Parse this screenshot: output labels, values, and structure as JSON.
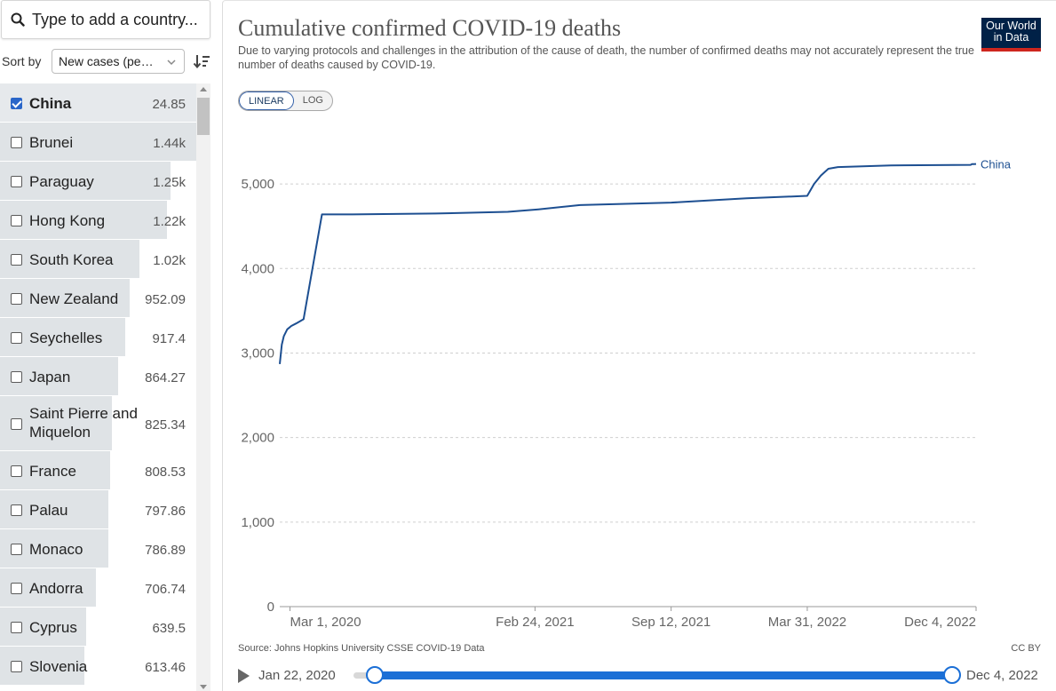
{
  "search": {
    "placeholder": "Type to add a country..."
  },
  "sort": {
    "label": "Sort by",
    "selected": "New cases (pe…"
  },
  "countries": [
    {
      "name": "China",
      "value": "24.85",
      "selected": true,
      "fraction": 1.0
    },
    {
      "name": "Brunei",
      "value": "1.44k",
      "selected": false,
      "fraction": 1.0
    },
    {
      "name": "Paraguay",
      "value": "1.25k",
      "selected": false,
      "fraction": 0.87
    },
    {
      "name": "Hong Kong",
      "value": "1.22k",
      "selected": false,
      "fraction": 0.85
    },
    {
      "name": "South Korea",
      "value": "1.02k",
      "selected": false,
      "fraction": 0.71
    },
    {
      "name": "New Zealand",
      "value": "952.09",
      "selected": false,
      "fraction": 0.66
    },
    {
      "name": "Seychelles",
      "value": "917.4",
      "selected": false,
      "fraction": 0.64
    },
    {
      "name": "Japan",
      "value": "864.27",
      "selected": false,
      "fraction": 0.6
    },
    {
      "name": "Saint Pierre and Miquelon",
      "value": "825.34",
      "selected": false,
      "fraction": 0.57
    },
    {
      "name": "France",
      "value": "808.53",
      "selected": false,
      "fraction": 0.56
    },
    {
      "name": "Palau",
      "value": "797.86",
      "selected": false,
      "fraction": 0.55
    },
    {
      "name": "Monaco",
      "value": "786.89",
      "selected": false,
      "fraction": 0.55
    },
    {
      "name": "Andorra",
      "value": "706.74",
      "selected": false,
      "fraction": 0.49
    },
    {
      "name": "Cyprus",
      "value": "639.5",
      "selected": false,
      "fraction": 0.44
    },
    {
      "name": "Slovenia",
      "value": "613.46",
      "selected": false,
      "fraction": 0.43
    }
  ],
  "chart": {
    "title": "Cumulative confirmed COVID-19 deaths",
    "subtitle": "Due to varying protocols and challenges in the attribution of the cause of death, the number of confirmed deaths may not accurately represent the true number of deaths caused by COVID-19.",
    "logo_line1": "Our World",
    "logo_line2": "in Data",
    "scale_options": [
      "LINEAR",
      "LOG"
    ],
    "active_scale": "LINEAR",
    "source": "Source: Johns Hopkins University CSSE COVID-19 Data",
    "license": "CC BY"
  },
  "timeline": {
    "start": "Jan 22, 2020",
    "end": "Dec 4, 2022"
  },
  "colors": {
    "line": "#1d4f91",
    "accent": "#1b6fd6",
    "logo_bg": "#002147",
    "logo_bar": "#ce261e"
  },
  "chart_data": {
    "type": "line",
    "title": "Cumulative confirmed COVID-19 deaths",
    "xlabel": "",
    "ylabel": "",
    "ylim": [
      0,
      5800
    ],
    "xlim": [
      "2020-02-15",
      "2022-12-04"
    ],
    "yticks": [
      "0",
      "1,000",
      "2,000",
      "3,000",
      "4,000",
      "5,000"
    ],
    "xticks": [
      {
        "date": "2020-03-01",
        "label": "Mar 1, 2020"
      },
      {
        "date": "2021-02-24",
        "label": "Feb 24, 2021"
      },
      {
        "date": "2021-09-12",
        "label": "Sep 12, 2021"
      },
      {
        "date": "2022-03-31",
        "label": "Mar 31, 2022"
      },
      {
        "date": "2022-12-04",
        "label": "Dec 4, 2022"
      }
    ],
    "grid": "horizontal",
    "series": [
      {
        "name": "China",
        "points": [
          [
            "2020-02-15",
            2870
          ],
          [
            "2020-02-18",
            3100
          ],
          [
            "2020-02-21",
            3200
          ],
          [
            "2020-02-26",
            3280
          ],
          [
            "2020-03-03",
            3320
          ],
          [
            "2020-03-10",
            3350
          ],
          [
            "2020-03-21",
            3400
          ],
          [
            "2020-04-17",
            4640
          ],
          [
            "2020-06-01",
            4640
          ],
          [
            "2020-10-01",
            4650
          ],
          [
            "2021-01-15",
            4670
          ],
          [
            "2021-03-01",
            4700
          ],
          [
            "2021-05-01",
            4750
          ],
          [
            "2021-09-12",
            4780
          ],
          [
            "2022-01-01",
            4830
          ],
          [
            "2022-03-31",
            4860
          ],
          [
            "2022-04-10",
            5000
          ],
          [
            "2022-04-20",
            5100
          ],
          [
            "2022-05-01",
            5180
          ],
          [
            "2022-05-15",
            5200
          ],
          [
            "2022-08-01",
            5220
          ],
          [
            "2022-11-26",
            5226
          ],
          [
            "2022-11-28",
            5235
          ],
          [
            "2022-12-01",
            5235
          ],
          [
            "2022-12-04",
            5237
          ]
        ]
      }
    ]
  }
}
